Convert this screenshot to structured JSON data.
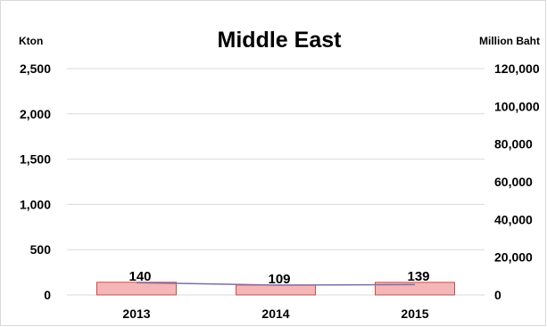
{
  "chart_data": {
    "type": "bar",
    "title": "Middle East",
    "categories": [
      "2013",
      "2014",
      "2015"
    ],
    "y_left": {
      "label": "Kton",
      "min": 0,
      "max": 2500,
      "ticks": [
        "0",
        "500",
        "1,000",
        "1,500",
        "2,000",
        "2,500"
      ]
    },
    "y_right": {
      "label": "Million Baht",
      "min": 0,
      "max": 120000,
      "ticks": [
        "0",
        "20,000",
        "40,000",
        "60,000",
        "80,000",
        "100,000",
        "120,000"
      ]
    },
    "series": [
      {
        "axis": "left",
        "kind": "bar",
        "values": [
          140,
          109,
          139
        ],
        "data_labels": [
          "140",
          "109",
          "139"
        ],
        "color": "#f4b6b6",
        "edge_color": "#c0504d"
      },
      {
        "axis": "right",
        "kind": "line",
        "values": [
          6500,
          5200,
          5500
        ],
        "color": "#7b6fa8"
      }
    ],
    "grid": true,
    "legend": "none"
  }
}
